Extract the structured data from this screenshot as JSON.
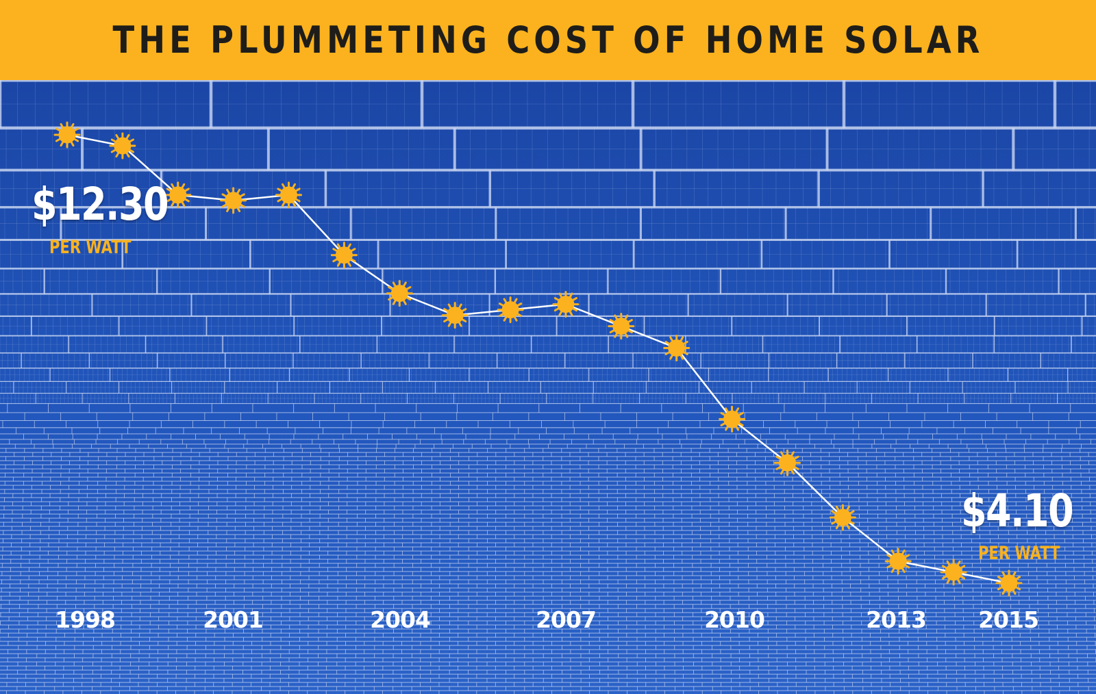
{
  "title": "THE PLUMMETING COST OF HOME SOLAR",
  "annotations": {
    "start_value": "$12.30",
    "start_unit": "PER WATT",
    "end_value": "$4.10",
    "end_unit": "PER WATT"
  },
  "colors": {
    "accent": "#fbb21e",
    "line": "#ffffff",
    "background": "#1f4fae",
    "panel_line": "#c9d6f2",
    "text_dark": "#1e1d1a"
  },
  "chart_data": {
    "type": "line",
    "title": "THE PLUMMETING COST OF HOME SOLAR",
    "xlabel": "",
    "ylabel": "",
    "x": [
      1998,
      1999,
      2000,
      2001,
      2002,
      2003,
      2004,
      2005,
      2006,
      2007,
      2008,
      2009,
      2010,
      2011,
      2012,
      2013,
      2014,
      2015
    ],
    "tick_labels": [
      "1998",
      "2001",
      "2004",
      "2007",
      "2010",
      "2013",
      "2015"
    ],
    "series": [
      {
        "values": [
          12.3,
          12.1,
          11.2,
          11.1,
          11.2,
          10.1,
          9.4,
          9.0,
          9.1,
          9.2,
          8.8,
          8.4,
          7.1,
          6.3,
          5.3,
          4.5,
          4.3,
          4.1
        ],
        "marker": "sun-icon"
      }
    ],
    "ylim": [
      0,
      14
    ],
    "grid": false,
    "legend": "none"
  }
}
